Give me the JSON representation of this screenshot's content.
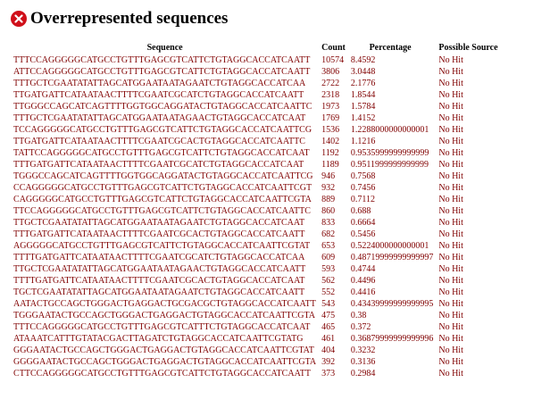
{
  "module": {
    "title": "Overrepresented sequences",
    "status_icon": "fail-icon",
    "status_color": "#d0101a",
    "text_color": "#800000"
  },
  "table": {
    "headers": [
      "Sequence",
      "Count",
      "Percentage",
      "Possible Source"
    ],
    "rows": [
      {
        "seq": "TTTCCAGGGGGCATGCCTGTTTGAGCGTCATTCTGTAGGCACCATCAATT",
        "count": "10574",
        "pct": "8.4592",
        "source": "No Hit"
      },
      {
        "seq": "ATTCCAGGGGGCATGCCTGTTTGAGCGTCATTCTGTAGGCACCATCAATT",
        "count": "3806",
        "pct": "3.0448",
        "source": "No Hit"
      },
      {
        "seq": "TTTGCTCGAATATATTAGCATGGAATAATAGAATCTGTAGGCACCATCAA",
        "count": "2722",
        "pct": "2.1776",
        "source": "No Hit"
      },
      {
        "seq": "TTGATGATTCATAATAACTTTTCGAATCGCATCTGTAGGCACCATCAATT",
        "count": "2318",
        "pct": "1.8544",
        "source": "No Hit"
      },
      {
        "seq": "TTGGGCCAGCATCAGTTTTGGTGGCAGGATACTGTAGGCACCATCAATTC",
        "count": "1973",
        "pct": "1.5784",
        "source": "No Hit"
      },
      {
        "seq": "TTTGCTCGAATATATTAGCATGGAATAATAGAACTGTAGGCACCATCAAT",
        "count": "1769",
        "pct": "1.4152",
        "source": "No Hit"
      },
      {
        "seq": "TCCAGGGGGCATGCCTGTTTGAGCGTCATTCTGTAGGCACCATCAATTCG",
        "count": "1536",
        "pct": "1.2288000000000001",
        "source": "No Hit"
      },
      {
        "seq": "TTGATGATTCATAATAACTTTTCGAATCGCACTGTAGGCACCATCAATTC",
        "count": "1402",
        "pct": "1.1216",
        "source": "No Hit"
      },
      {
        "seq": "TATTCCAGGGGGCATGCCTGTTTGAGCGTCATTCTGTAGGCACCATCAAT",
        "count": "1192",
        "pct": "0.9535999999999999",
        "source": "No Hit"
      },
      {
        "seq": "TTTGATGATTCATAATAACTTTTCGAATCGCATCTGTAGGCACCATCAAT",
        "count": "1189",
        "pct": "0.9511999999999999",
        "source": "No Hit"
      },
      {
        "seq": "TGGGCCAGCATCAGTTTTGGTGGCAGGATACTGTAGGCACCATCAATTCG",
        "count": "946",
        "pct": "0.7568",
        "source": "No Hit"
      },
      {
        "seq": "CCAGGGGGCATGCCTGTTTGAGCGTCATTCTGTAGGCACCATCAATTCGT",
        "count": "932",
        "pct": "0.7456",
        "source": "No Hit"
      },
      {
        "seq": "CAGGGGGCATGCCTGTTTGAGCGTCATTCTGTAGGCACCATCAATTCGTA",
        "count": "889",
        "pct": "0.7112",
        "source": "No Hit"
      },
      {
        "seq": "TTCCAGGGGGCATGCCTGTTTGAGCGTCATTCTGTAGGCACCATCAATTC",
        "count": "860",
        "pct": "0.688",
        "source": "No Hit"
      },
      {
        "seq": "TTGCTCGAATATATTAGCATGGAATAATAGAATCTGTAGGCACCATCAAT",
        "count": "833",
        "pct": "0.6664",
        "source": "No Hit"
      },
      {
        "seq": "TTTGATGATTCATAATAACTTTTCGAATCGCACTGTAGGCACCATCAATT",
        "count": "682",
        "pct": "0.5456",
        "source": "No Hit"
      },
      {
        "seq": "AGGGGGCATGCCTGTTTGAGCGTCATTCTGTAGGCACCATCAATTCGTAT",
        "count": "653",
        "pct": "0.5224000000000001",
        "source": "No Hit"
      },
      {
        "seq": "TTTTGATGATTCATAATAACTTTTCGAATCGCATCTGTAGGCACCATCAA",
        "count": "609",
        "pct": "0.48719999999999997",
        "source": "No Hit"
      },
      {
        "seq": "TTGCTCGAATATATTAGCATGGAATAATAGAACTGTAGGCACCATCAATT",
        "count": "593",
        "pct": "0.4744",
        "source": "No Hit"
      },
      {
        "seq": "TTTTGATGATTCATAATAACTTTTCGAATCGCACTGTAGGCACCATCAAT",
        "count": "562",
        "pct": "0.4496",
        "source": "No Hit"
      },
      {
        "seq": "TGCTCGAATATATTAGCATGGAATAATAGAATCTGTAGGCACCATCAATT",
        "count": "552",
        "pct": "0.4416",
        "source": "No Hit"
      },
      {
        "seq": "AATACTGCCAGCTGGGACTGAGGACTGCGACGCTGTAGGCACCATCAATT",
        "count": "543",
        "pct": "0.43439999999999995",
        "source": "No Hit"
      },
      {
        "seq": "TGGGAATACTGCCAGCTGGGACTGAGGACTGTAGGCACCATCAATTCGTA",
        "count": "475",
        "pct": "0.38",
        "source": "No Hit"
      },
      {
        "seq": "TTTCCAGGGGGCATGCCTGTTTGAGCGTCATTTCTGTAGGCACCATCAAT",
        "count": "465",
        "pct": "0.372",
        "source": "No Hit"
      },
      {
        "seq": "ATAAATCATTTGTATACGACTTAGATCTGTAGGCACCATCAATTCGTATG",
        "count": "461",
        "pct": "0.36879999999999996",
        "source": "No Hit"
      },
      {
        "seq": "GGGAATACTGCCAGCTGGGACTGAGGACTGTAGGCACCATCAATTCGTAT",
        "count": "404",
        "pct": "0.3232",
        "source": "No Hit"
      },
      {
        "seq": "GGGGAATACTGCCAGCTGGGACTGAGGACTGTAGGCACCATCAATTCGTA",
        "count": "392",
        "pct": "0.3136",
        "source": "No Hit"
      },
      {
        "seq": "CTTCCAGGGGGCATGCCTGTTTGAGCGTCATTCTGTAGGCACCATCAATT",
        "count": "373",
        "pct": "0.2984",
        "source": "No Hit"
      }
    ]
  }
}
